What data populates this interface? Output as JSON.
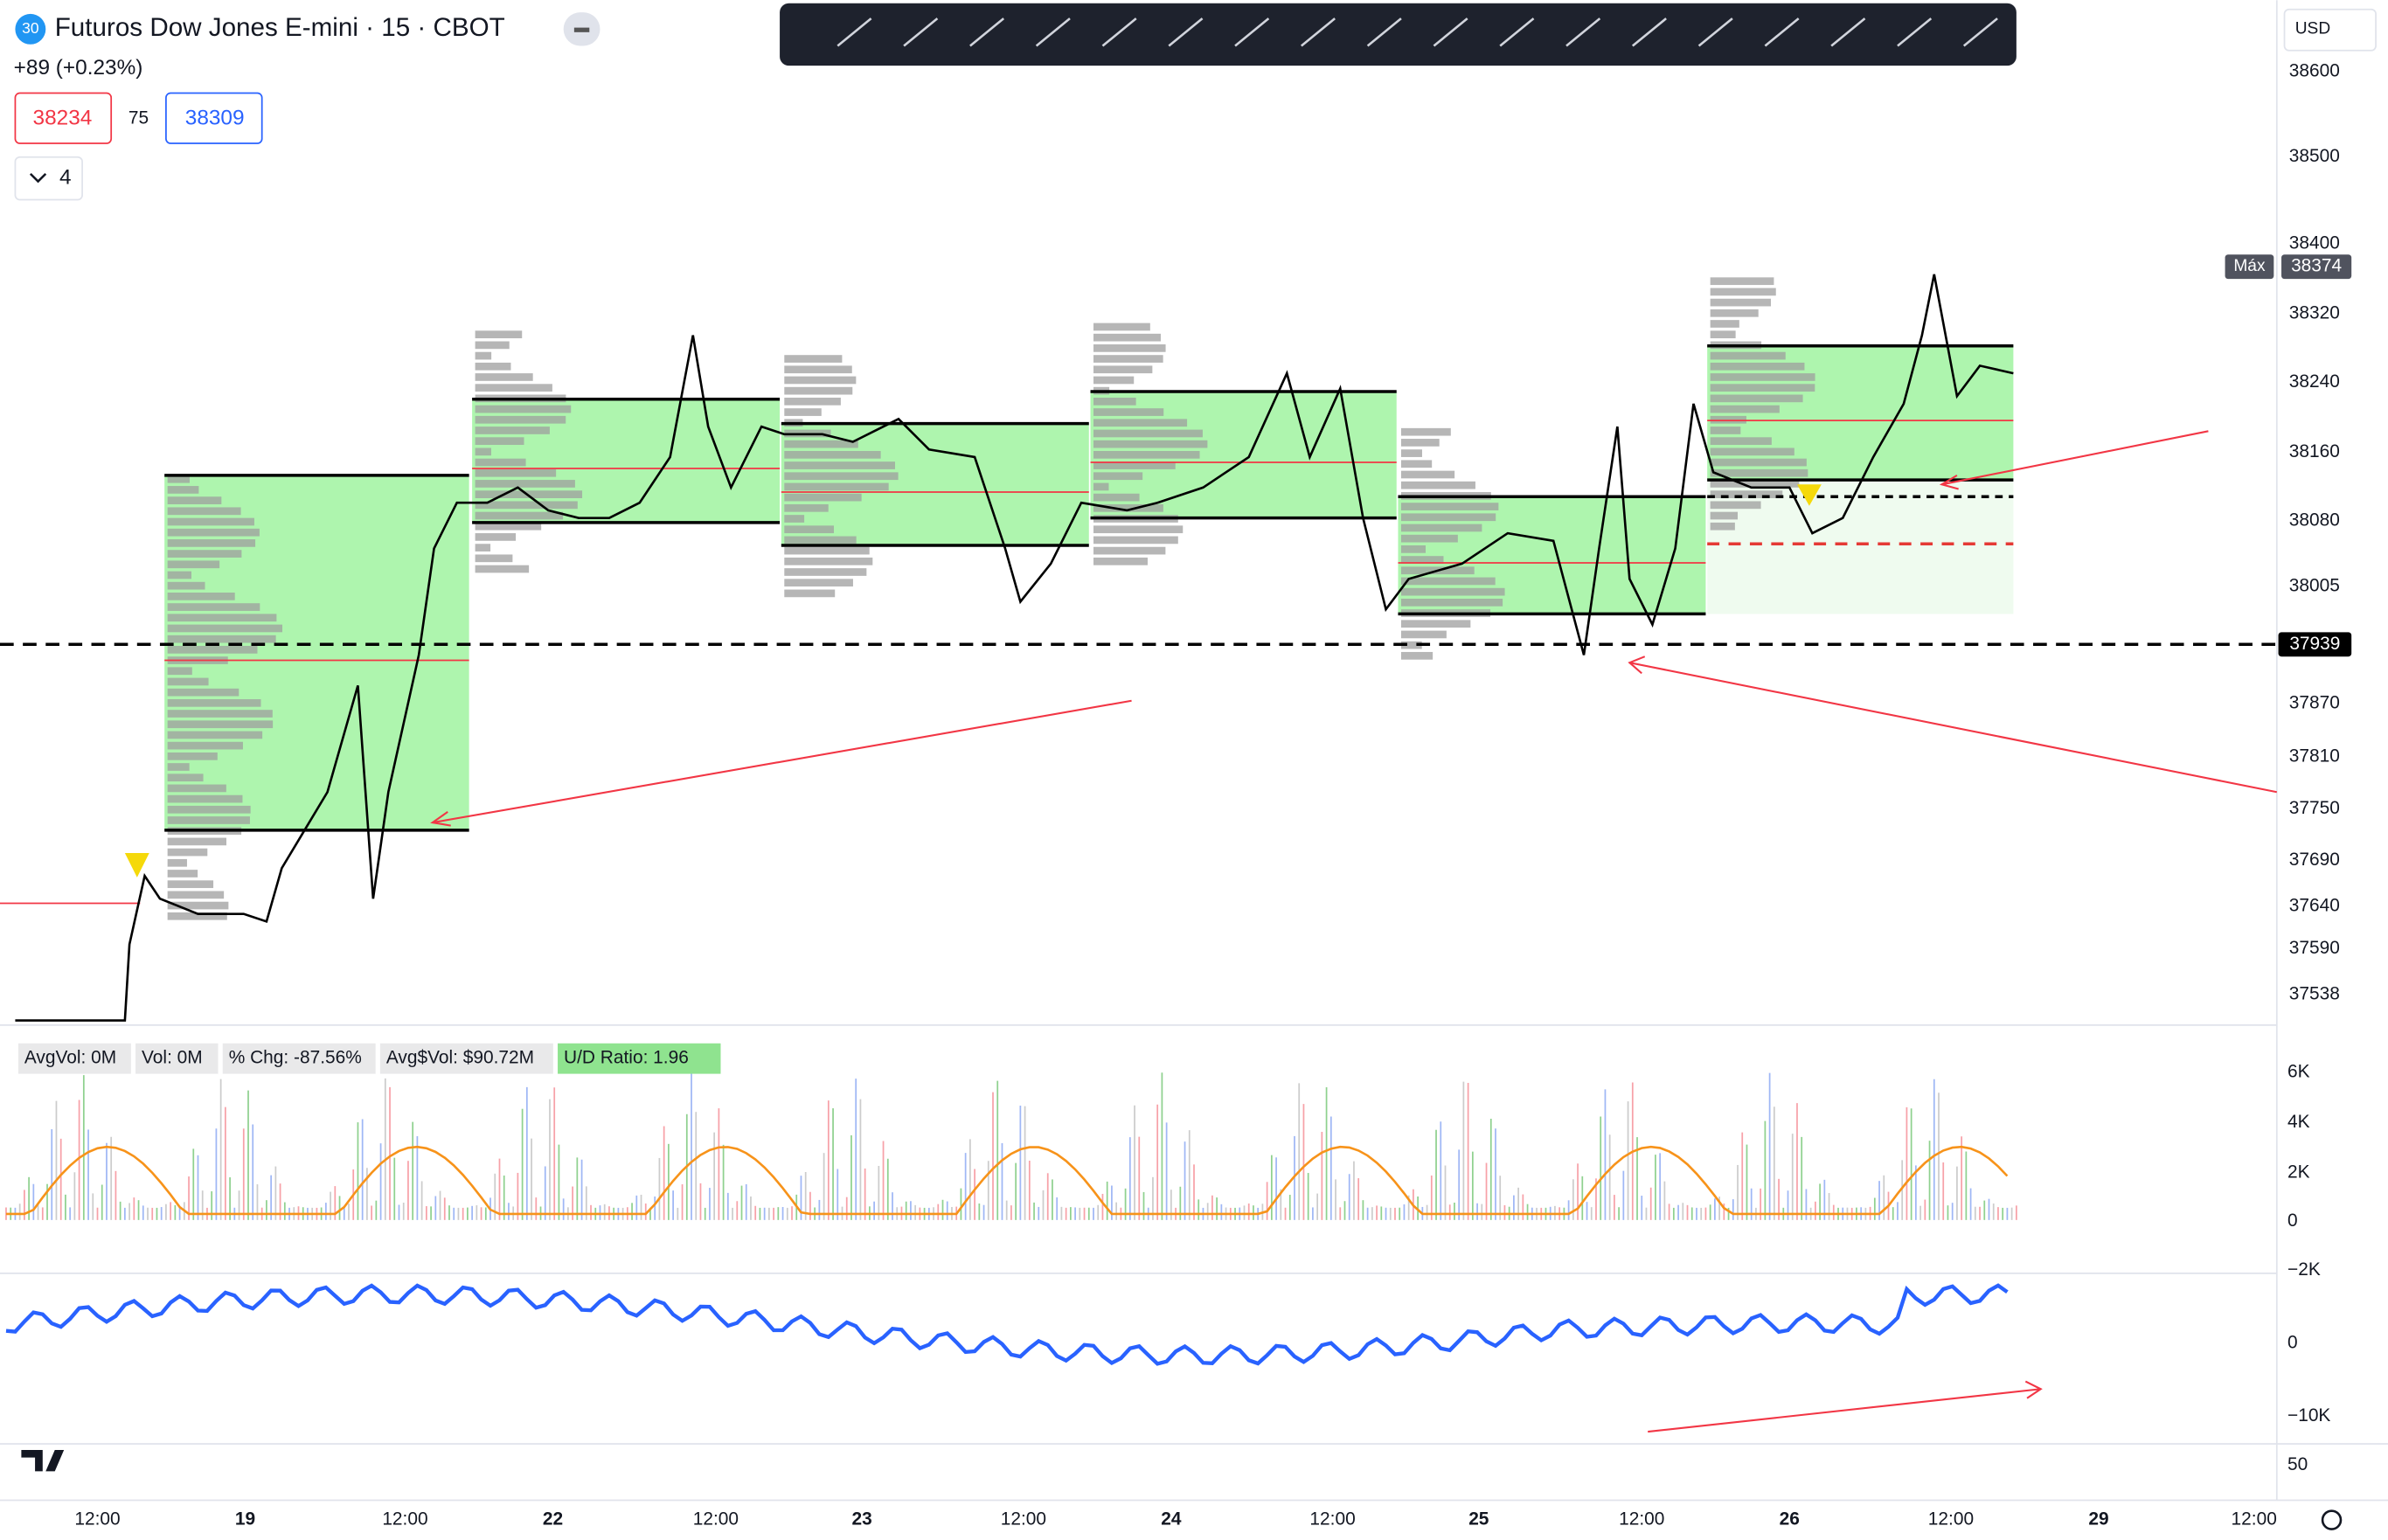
{
  "header": {
    "symbol_badge": "30",
    "title": "Futuros Dow Jones E-mini · 15 · CBOT",
    "change": "+89 (+0.23%)",
    "bid": "38234",
    "spread": "75",
    "ask": "38309",
    "collapse_count": "4"
  },
  "currency": "USD",
  "price_axis": {
    "labels": [
      "38600",
      "38500",
      "38400",
      "38320",
      "38240",
      "38160",
      "38080",
      "38005",
      "37870",
      "37810",
      "37750",
      "37690",
      "37640",
      "37590",
      "37538"
    ],
    "max_label": "Máx",
    "max_value": "38374",
    "current_price": "37939"
  },
  "volume_panel": {
    "stats": [
      "AvgVol: 0M",
      "Vol: 0M",
      "% Chg: -87.56%",
      "Avg$Vol: $90.72M",
      "U/D Ratio: 1.96"
    ],
    "axis": [
      "6K",
      "4K",
      "2K",
      "0",
      "−2K"
    ]
  },
  "delta_panel": {
    "axis": [
      "0",
      "−10K",
      "50"
    ]
  },
  "time_axis": [
    "12:00",
    "19",
    "12:00",
    "22",
    "12:00",
    "23",
    "12:00",
    "24",
    "12:00",
    "25",
    "12:00",
    "26",
    "12:00",
    "29",
    "12:00"
  ]
}
